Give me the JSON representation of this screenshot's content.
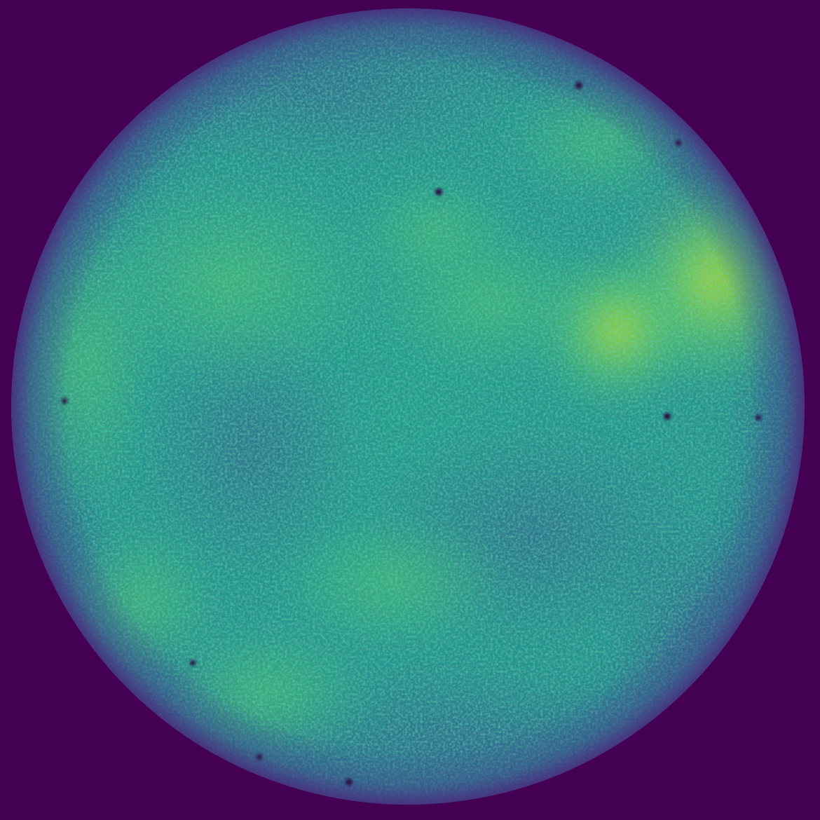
{
  "image": {
    "subject": "circular-reconstruction",
    "colormap": "viridis",
    "colors": {
      "background": "#440154",
      "low": "#3b528b",
      "mid_low": "#2c728e",
      "mid": "#21918c",
      "mid_high": "#27ad81",
      "high": "#5ec962",
      "peak": "#fde725",
      "dark_spot": "#2a0f45"
    }
  }
}
